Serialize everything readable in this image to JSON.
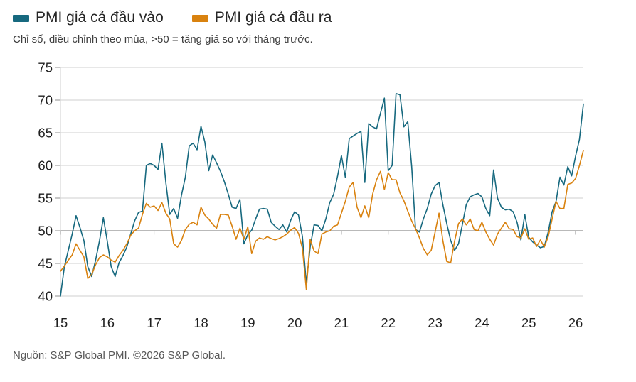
{
  "header": {
    "subtitle": "Chỉ số, điều chỉnh theo mùa, >50 = tăng giá so với tháng trước."
  },
  "footer": {
    "source": "Nguồn: S&P Global PMI. ©2026 S&P Global."
  },
  "chart_data": {
    "type": "line",
    "frequency": "monthly",
    "x_start": "2015-01",
    "x_end": "2026-03",
    "x_tick_labels": [
      "15",
      "16",
      "17",
      "18",
      "19",
      "20",
      "21",
      "22",
      "23",
      "24",
      "25",
      "26"
    ],
    "y_ticks": [
      40,
      45,
      50,
      55,
      60,
      65,
      70,
      75
    ],
    "ylim": [
      40,
      75
    ],
    "baseline": 50,
    "grid": "horizontal",
    "legend_position": "top-left",
    "colors": {
      "input": "#17697f",
      "output": "#d9820f",
      "grid": "#cfcfcf",
      "baseline_grid": "#8f8f8f",
      "axis_text": "#1f1f1f"
    },
    "series": [
      {
        "name": "PMI giá cả đầu vào",
        "color": "#17697f",
        "values": [
          40.0,
          44.5,
          47.0,
          49.5,
          52.3,
          50.5,
          48.5,
          44.5,
          43.0,
          45.5,
          48.5,
          52.0,
          48.4,
          44.5,
          43.0,
          45.1,
          46.2,
          47.5,
          49.5,
          51.5,
          52.8,
          53.0,
          60.0,
          60.3,
          60.0,
          59.4,
          63.4,
          57.4,
          52.5,
          53.4,
          51.9,
          55.4,
          58.2,
          63.0,
          63.4,
          62.4,
          66.0,
          63.6,
          59.2,
          61.6,
          60.4,
          59.1,
          57.5,
          55.6,
          53.6,
          53.4,
          54.8,
          48.0,
          49.4,
          50.1,
          51.8,
          53.3,
          53.4,
          53.3,
          51.3,
          50.7,
          50.2,
          50.9,
          49.8,
          51.6,
          52.9,
          52.4,
          49.1,
          42.0,
          47.5,
          50.9,
          50.8,
          50.0,
          51.8,
          54.3,
          55.6,
          58.3,
          61.5,
          58.2,
          64.1,
          64.5,
          64.9,
          65.2,
          57.4,
          66.4,
          65.9,
          65.6,
          68.0,
          70.3,
          59.2,
          60.0,
          71.0,
          70.8,
          65.9,
          66.7,
          59.8,
          50.2,
          49.8,
          51.8,
          53.4,
          55.6,
          56.9,
          57.4,
          54.0,
          51.1,
          48.5,
          47.0,
          48.0,
          51.0,
          54.0,
          55.2,
          55.5,
          55.7,
          55.2,
          53.4,
          52.3,
          59.3,
          55.0,
          53.6,
          53.2,
          53.3,
          52.9,
          51.3,
          48.6,
          52.5,
          49.0,
          48.3,
          47.8,
          47.4,
          47.6,
          49.8,
          52.9,
          54.5,
          58.2,
          57.0,
          59.8,
          58.4,
          61.4,
          64.0,
          69.4
        ]
      },
      {
        "name": "PMI giá cả đầu ra",
        "color": "#d9820f",
        "values": [
          43.8,
          44.6,
          45.5,
          46.3,
          48.0,
          47.0,
          46.0,
          42.7,
          43.3,
          44.8,
          45.9,
          46.3,
          46.0,
          45.5,
          45.2,
          46.2,
          47.0,
          48.0,
          49.3,
          50.0,
          50.4,
          52.5,
          54.2,
          53.6,
          53.8,
          53.1,
          54.3,
          52.7,
          51.8,
          48.0,
          47.5,
          48.5,
          50.2,
          51.0,
          51.3,
          50.9,
          53.6,
          52.4,
          51.8,
          51.0,
          50.4,
          52.5,
          52.5,
          52.4,
          50.7,
          48.7,
          50.4,
          48.7,
          50.6,
          46.5,
          48.4,
          48.9,
          48.7,
          49.1,
          48.8,
          48.6,
          48.8,
          49.1,
          49.5,
          50.1,
          50.5,
          49.6,
          47.3,
          41.0,
          48.7,
          46.9,
          46.5,
          49.5,
          49.8,
          50.0,
          50.7,
          50.9,
          52.7,
          54.5,
          56.7,
          57.4,
          53.6,
          52.0,
          53.8,
          52.0,
          55.6,
          57.8,
          59.1,
          56.3,
          58.9,
          57.8,
          57.8,
          55.8,
          54.6,
          53.0,
          51.5,
          50.3,
          48.9,
          47.3,
          46.3,
          47.0,
          49.8,
          52.7,
          48.5,
          45.3,
          45.1,
          48.4,
          51.1,
          51.8,
          50.9,
          51.8,
          50.2,
          50.0,
          51.3,
          49.8,
          48.7,
          47.8,
          49.5,
          50.4,
          51.3,
          50.3,
          50.2,
          49.1,
          48.9,
          50.3,
          48.7,
          48.9,
          47.6,
          48.6,
          47.5,
          49.1,
          51.8,
          54.5,
          53.4,
          53.4,
          57.1,
          57.3,
          58.0,
          60.0,
          62.3
        ]
      }
    ]
  }
}
